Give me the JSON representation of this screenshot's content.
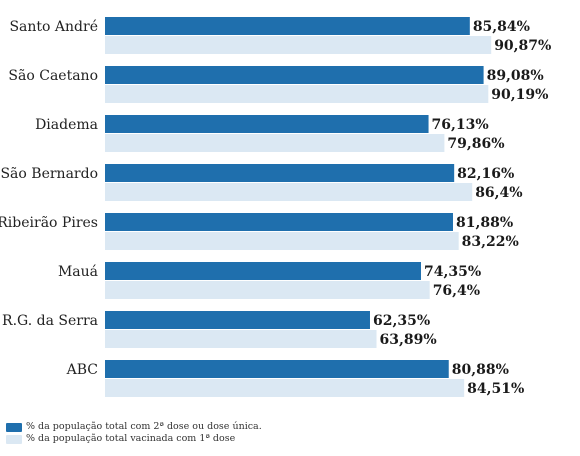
{
  "chart_data": {
    "type": "bar",
    "orientation": "horizontal",
    "categories": [
      "Santo André",
      "São Caetano",
      "Diadema",
      "São Bernardo",
      "Ribeirão Pires",
      "Mauá",
      "R.G. da Serra",
      "ABC"
    ],
    "series": [
      {
        "name": "% da população total com 2ª dose ou dose única.",
        "values": [
          85.84,
          89.08,
          76.13,
          82.16,
          81.88,
          74.35,
          62.35,
          80.88
        ],
        "labels": [
          "85,84%",
          "89,08%",
          "76,13%",
          "82,16%",
          "81,88%",
          "74,35%",
          "62,35%",
          "80,88%"
        ],
        "color": "#1f6fad"
      },
      {
        "name": "% da população total vacinada com 1ª dose",
        "values": [
          90.87,
          90.19,
          79.86,
          86.4,
          83.22,
          76.4,
          63.89,
          84.51
        ],
        "labels": [
          "90,87%",
          "90,19%",
          "79,86%",
          "86,4%",
          "83,22%",
          "76,4%",
          "63,89%",
          "84,51%"
        ],
        "color": "#dbe8f3"
      }
    ],
    "xlim": [
      0,
      100
    ],
    "legend_position": "bottom-left"
  }
}
